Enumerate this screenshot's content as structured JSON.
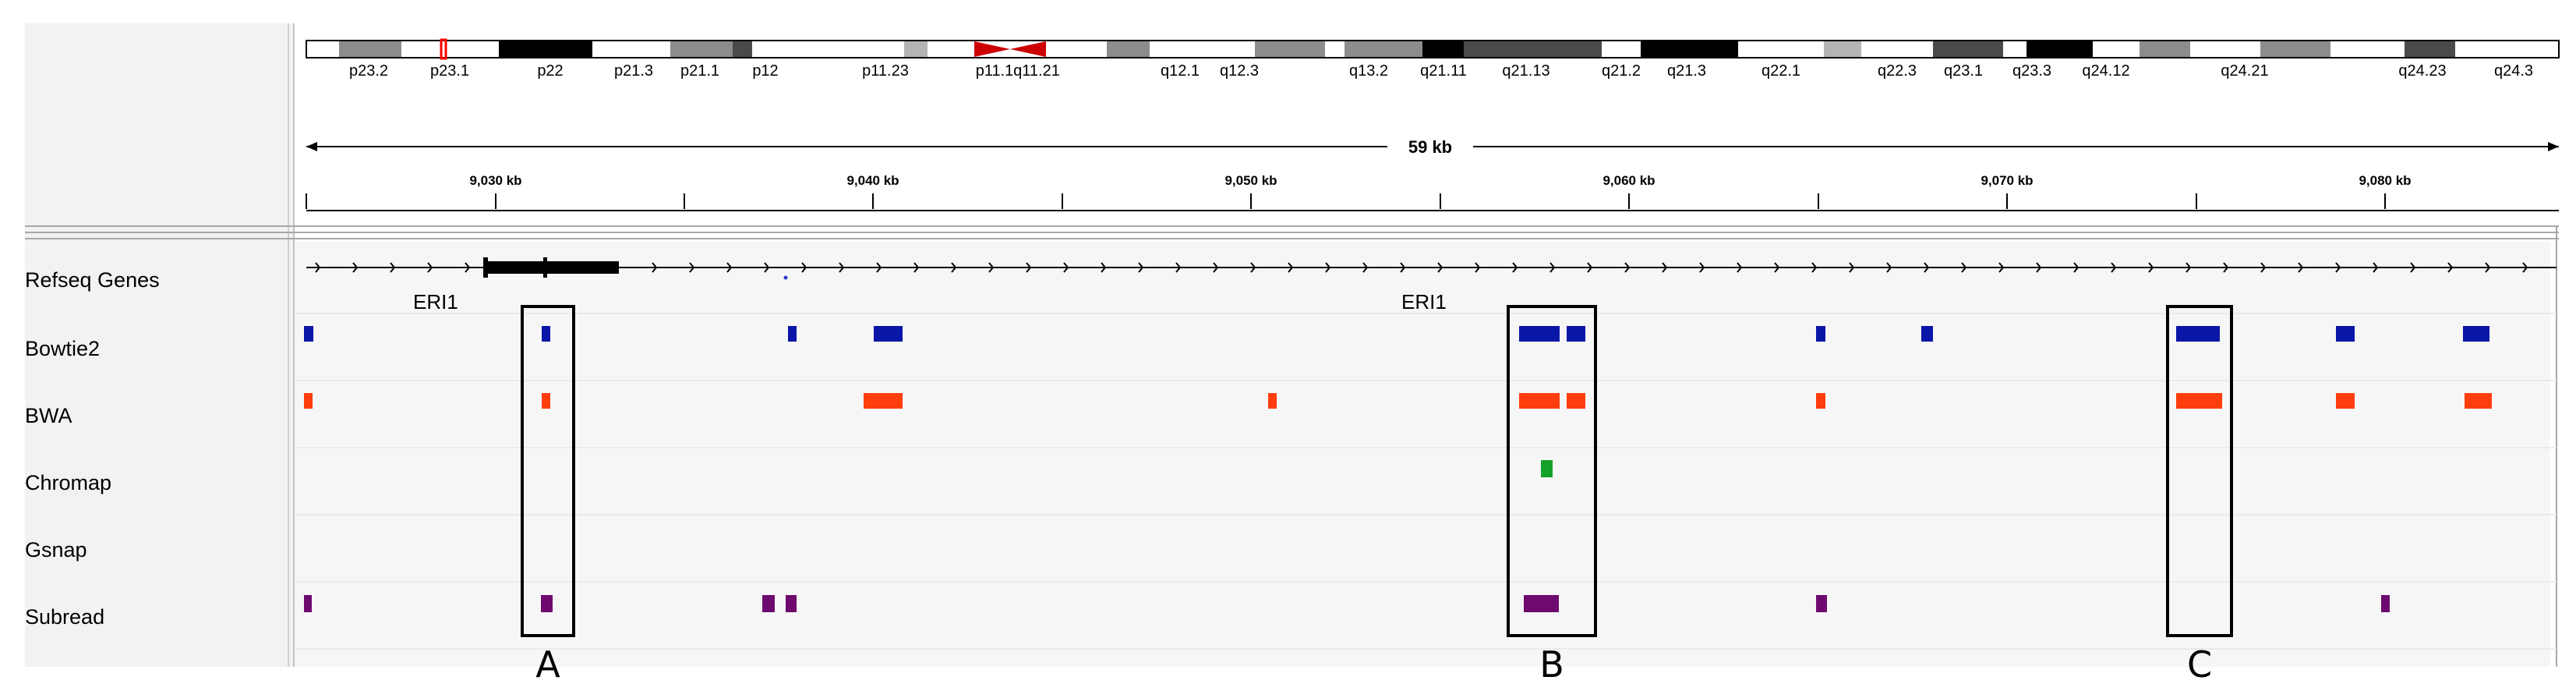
{
  "ideogram": {
    "bands": [
      {
        "label": "p23.2",
        "stain": "gpos50"
      },
      {
        "label": "p23.1",
        "stain": "gneg"
      },
      {
        "label": "p22",
        "stain": "gpos100"
      },
      {
        "label": "p21.3",
        "stain": "gneg"
      },
      {
        "label": "p21.1",
        "stain": "gpos50"
      },
      {
        "label": "p12",
        "stain": "gpos75"
      },
      {
        "label": "p11.23",
        "stain": "gneg"
      },
      {
        "label": "p11.1",
        "stain": "acen"
      },
      {
        "label": "q11.21",
        "stain": "gneg"
      },
      {
        "label": "q12.1",
        "stain": "gpos50"
      },
      {
        "label": "q12.3",
        "stain": "gpos50"
      },
      {
        "label": "q13.2",
        "stain": "gpos50"
      },
      {
        "label": "q21.11",
        "stain": "gpos100"
      },
      {
        "label": "q21.13",
        "stain": "gpos75"
      },
      {
        "label": "q21.2",
        "stain": "gneg"
      },
      {
        "label": "q21.3",
        "stain": "gpos100"
      },
      {
        "label": "q22.1",
        "stain": "gneg"
      },
      {
        "label": "q22.3",
        "stain": "gneg"
      },
      {
        "label": "q23.1",
        "stain": "gpos75"
      },
      {
        "label": "q23.3",
        "stain": "gpos100"
      },
      {
        "label": "q24.12",
        "stain": "gpos50"
      },
      {
        "label": "q24.21",
        "stain": "gpos50"
      },
      {
        "label": "q24.23",
        "stain": "gpos75"
      },
      {
        "label": "q24.3",
        "stain": "gneg"
      }
    ],
    "current_region_color": "#ff0000"
  },
  "ruler": {
    "span_label": "59 kb",
    "ticks": [
      "9,030 kb",
      "9,040 kb",
      "9,050 kb",
      "9,060 kb",
      "9,070 kb",
      "9,080 kb"
    ]
  },
  "tracks": [
    {
      "name": "Refseq Genes",
      "type": "gene",
      "color": "#000000",
      "gene_labels": [
        "ERI1",
        "ERI1"
      ]
    },
    {
      "name": "Bowtie2",
      "type": "alignment",
      "color": "#0a16a8"
    },
    {
      "name": "BWA",
      "type": "alignment",
      "color": "#ff3d0d"
    },
    {
      "name": "Chromap",
      "type": "alignment",
      "color": "#14a029"
    },
    {
      "name": "Gsnap",
      "type": "alignment",
      "color": "#000000"
    },
    {
      "name": "Subread",
      "type": "alignment",
      "color": "#6e0a6e"
    }
  ],
  "highlight_boxes": [
    "A",
    "B",
    "C"
  ]
}
